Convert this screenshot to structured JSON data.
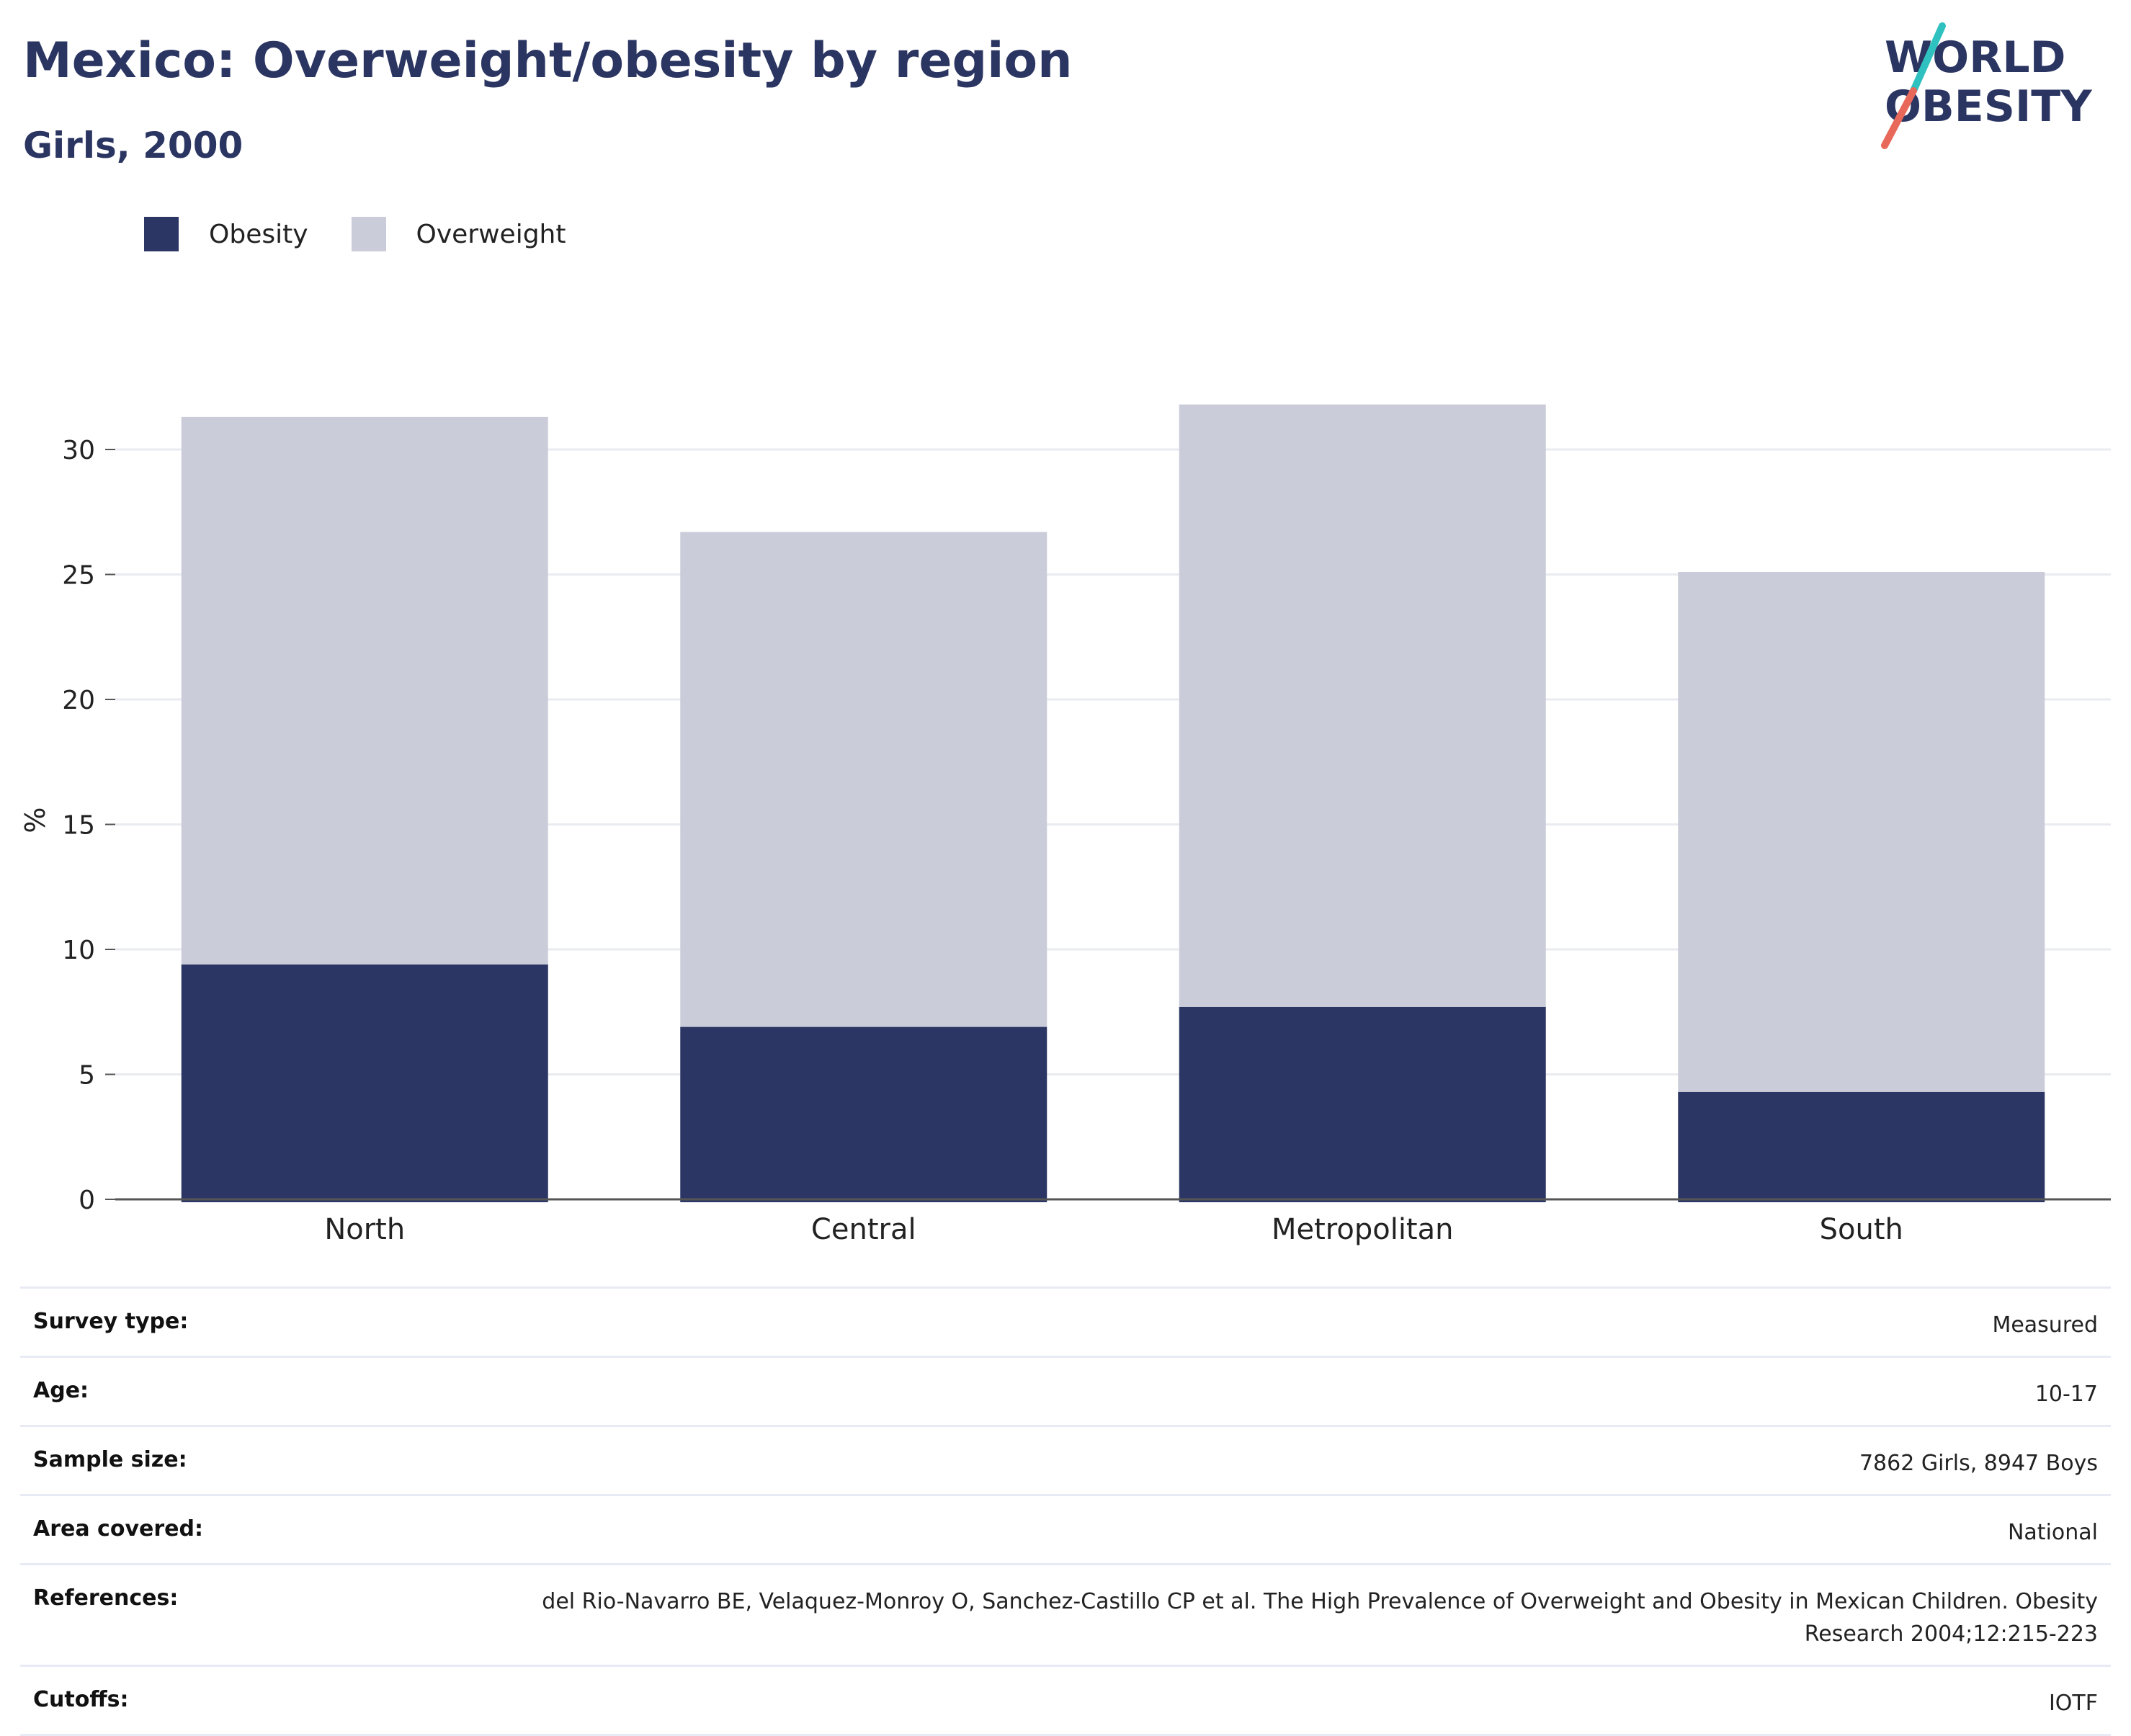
{
  "header": {
    "title": "Mexico: Overweight/obesity by region",
    "subtitle": "Girls, 2000",
    "logo_text_line1": "WORLD",
    "logo_text_line2": "OBESITY"
  },
  "colors": {
    "obesity": "#2b3664",
    "overweight": "#cacdd9",
    "title": "#2b3562",
    "logo_text": "#2b3562",
    "logo_slash_top": "#2fc1bf",
    "logo_slash_bottom": "#e8685a",
    "grid": "#e9ebf0",
    "axis": "#555555"
  },
  "chart_data": {
    "type": "bar",
    "stacked": true,
    "title": "Mexico: Overweight/obesity by region",
    "subtitle": "Girls, 2000",
    "categories": [
      "North",
      "Central",
      "Metropolitan",
      "South"
    ],
    "series": [
      {
        "name": "Obesity",
        "values": [
          9.4,
          6.9,
          7.7,
          4.3
        ]
      },
      {
        "name": "Overweight",
        "values": [
          21.9,
          19.8,
          24.1,
          20.8
        ]
      }
    ],
    "totals": [
      31.3,
      26.7,
      31.8,
      25.1
    ],
    "xlabel": "",
    "ylabel": "%",
    "ylim": [
      0,
      32
    ],
    "yticks": [
      0,
      5,
      10,
      15,
      20,
      25,
      30
    ],
    "grid": true,
    "legend_position": "top-left"
  },
  "meta": [
    {
      "key": "Survey type:",
      "value": "Measured"
    },
    {
      "key": "Age:",
      "value": "10-17"
    },
    {
      "key": "Sample size:",
      "value": "7862 Girls, 8947 Boys"
    },
    {
      "key": "Area covered:",
      "value": "National"
    },
    {
      "key": "References:",
      "value": "del Rio-Navarro BE, Velaquez-Monroy O, Sanchez-Castillo CP et al. The High Prevalence of Overweight and Obesity in Mexican Children. Obesity Research 2004;12:215-223"
    },
    {
      "key": "Cutoffs:",
      "value": "IOTF"
    }
  ]
}
